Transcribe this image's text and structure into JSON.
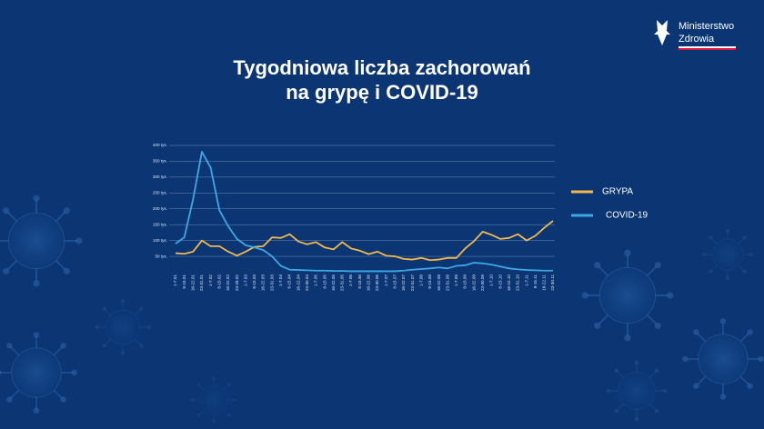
{
  "logo": {
    "lines": [
      "Ministerstwo",
      "Zdrowia"
    ]
  },
  "chart_data": {
    "type": "line",
    "title": [
      "Tygodniowa liczba zachorowań",
      "na grypę i COVID-19"
    ],
    "categories": [
      "1-7.01",
      "8-15.01",
      "16-22.01",
      "23-31.01",
      "1-7.02",
      "8-15.02",
      "16-22.02",
      "23-28.02",
      "1-7.03",
      "8-15.03",
      "16-22.03",
      "23-31.03",
      "1-7.04",
      "8-15.04",
      "16-22.04",
      "23-30.04",
      "1-7.05",
      "8-15.05",
      "16-22.05",
      "23-31.05",
      "1-7.06",
      "8-15.06",
      "16-22.06",
      "23-30.06",
      "1-7.07",
      "8-15.07",
      "16-22.07",
      "23-31.07",
      "1-7.08",
      "8-15.08",
      "16-22.08",
      "23-31.08",
      "1-7.09",
      "8-15.09",
      "16-22.09",
      "23-30.09",
      "1-7.10",
      "8-15.10",
      "16-22.10",
      "23-31.10",
      "1-7.11",
      "8-15.11",
      "16-22.11",
      "23-30.11"
    ],
    "series": [
      {
        "name": "GRYPA",
        "color": "#f3b94d",
        "values": [
          60000,
          58000,
          65000,
          100000,
          82000,
          82000,
          65000,
          52000,
          65000,
          80000,
          82000,
          110000,
          108000,
          120000,
          97000,
          88000,
          95000,
          78000,
          72000,
          95000,
          75000,
          68000,
          57000,
          65000,
          52000,
          50000,
          42000,
          40000,
          45000,
          38000,
          40000,
          45000,
          45000,
          75000,
          98000,
          128000,
          118000,
          105000,
          108000,
          120000,
          100000,
          115000,
          140000,
          162000
        ]
      },
      {
        "name": "COVID-19",
        "color": "#3ea8e5",
        "values": [
          90000,
          110000,
          230000,
          380000,
          330000,
          195000,
          145000,
          105000,
          85000,
          78000,
          70000,
          50000,
          20000,
          8000,
          7000,
          6000,
          5000,
          5000,
          4000,
          4000,
          3000,
          3000,
          3000,
          3000,
          3000,
          3000,
          5000,
          8000,
          10000,
          12000,
          15000,
          12000,
          20000,
          22000,
          30000,
          28000,
          24000,
          18000,
          12000,
          9000,
          7000,
          6000,
          5000,
          5000
        ]
      }
    ],
    "ylim": [
      0,
      400000
    ],
    "yticks": [
      {
        "value": 50000,
        "label": "50 tys."
      },
      {
        "value": 100000,
        "label": "100 tys."
      },
      {
        "value": 150000,
        "label": "150 tys."
      },
      {
        "value": 200000,
        "label": "200 tys."
      },
      {
        "value": 250000,
        "label": "250 tys."
      },
      {
        "value": 300000,
        "label": "300 tys."
      },
      {
        "value": 350000,
        "label": "350 tys."
      },
      {
        "value": 400000,
        "label": "400 tys."
      }
    ],
    "grid": true,
    "legend": "right"
  }
}
